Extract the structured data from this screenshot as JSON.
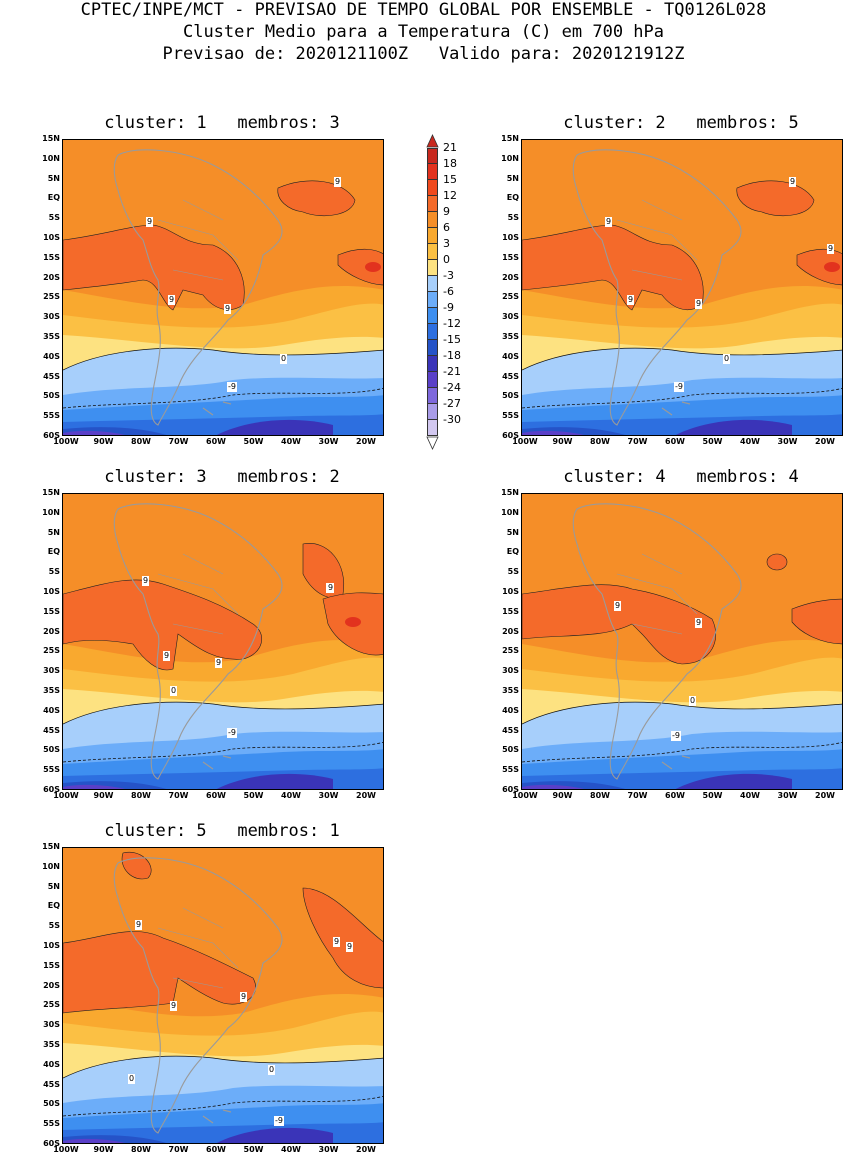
{
  "header": {
    "line1": "CPTEC/INPE/MCT - PREVISAO DE TEMPO GLOBAL POR ENSEMBLE - TQ0126L028",
    "line2": "Cluster Medio para a Temperatura (C) em 700 hPa",
    "line3": "Previsao de: 2020121100Z   Valido para: 2020121912Z"
  },
  "axes": {
    "lat_labels": [
      "15N",
      "10N",
      "5N",
      "EQ",
      "5S",
      "10S",
      "15S",
      "20S",
      "25S",
      "30S",
      "35S",
      "40S",
      "45S",
      "50S",
      "55S",
      "60S"
    ],
    "lon_labels": [
      "100W",
      "90W",
      "80W",
      "70W",
      "60W",
      "50W",
      "40W",
      "30W",
      "20W"
    ]
  },
  "colorbar": {
    "labels": [
      "21",
      "18",
      "15",
      "12",
      "9",
      "6",
      "3",
      "0",
      "-3",
      "-6",
      "-9",
      "-12",
      "-15",
      "-18",
      "-21",
      "-24",
      "-27",
      "-30"
    ],
    "colors": [
      "#c8281e",
      "#e2321e",
      "#f04a1e",
      "#f46a2a",
      "#f58e28",
      "#f9a92f",
      "#fbc044",
      "#fde281",
      "#a7cffb",
      "#6cadf9",
      "#3e8ff0",
      "#2d6fe0",
      "#2553c8",
      "#3a34b8",
      "#5a40c8",
      "#7e68dc",
      "#a99ce8",
      "#d2c8f0"
    ]
  },
  "panels": [
    {
      "title": "cluster: 1   membros: 3",
      "contour_labels": [
        "9",
        "9",
        "9",
        "9",
        "0",
        "-9"
      ]
    },
    {
      "title": "cluster: 2   membros: 5",
      "contour_labels": [
        "9",
        "9",
        "9",
        "9",
        "9",
        "0",
        "-9"
      ]
    },
    {
      "title": "cluster: 3   membros: 2",
      "contour_labels": [
        "9",
        "9",
        "9",
        "9",
        "9",
        "0",
        "-9"
      ]
    },
    {
      "title": "cluster: 4   membros: 4",
      "contour_labels": [
        "9",
        "9",
        "0",
        "-9"
      ]
    },
    {
      "title": "cluster: 5   membros: 1",
      "contour_labels": [
        "9",
        "9",
        "9",
        "9",
        "9",
        "0",
        "0",
        "-9"
      ]
    }
  ]
}
